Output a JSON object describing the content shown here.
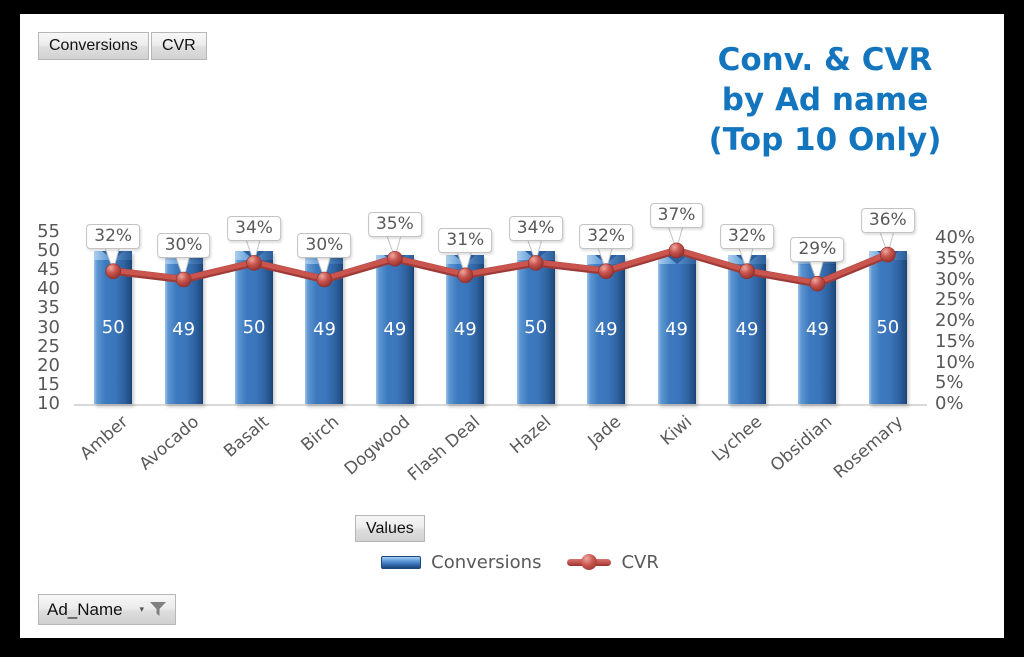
{
  "frame": {
    "background": "#000000",
    "canvas_background": "#FFFFFF"
  },
  "field_buttons": {
    "conversions_label": "Conversions",
    "cvr_label": "CVR"
  },
  "title": {
    "lines": [
      "Conv. & CVR",
      "by Ad name",
      "(Top 10 Only)"
    ],
    "color": "#1375BE"
  },
  "chart_data": {
    "type": "combo",
    "categories": [
      "Amber",
      "Avocado",
      "Basalt",
      "Birch",
      "Dogwood",
      "Flash Deal",
      "Hazel",
      "Jade",
      "Kiwi",
      "Lychee",
      "Obsidian",
      "Rosemary"
    ],
    "series": [
      {
        "name": "Conversions",
        "type": "bar",
        "axis": "left",
        "color": "#3B76BC",
        "values": [
          50,
          49,
          50,
          49,
          49,
          49,
          50,
          49,
          49,
          49,
          49,
          50
        ],
        "labels": [
          "50",
          "49",
          "50",
          "49",
          "49",
          "49",
          "50",
          "49",
          "49",
          "49",
          "49",
          "50"
        ]
      },
      {
        "name": "CVR",
        "type": "line",
        "axis": "right",
        "color": "#C0504D",
        "values_percent": [
          32,
          30,
          34,
          30,
          35,
          31,
          34,
          32,
          37,
          32,
          29,
          36
        ],
        "labels": [
          "32%",
          "30%",
          "34%",
          "30%",
          "35%",
          "31%",
          "34%",
          "32%",
          "37%",
          "32%",
          "29%",
          "36%"
        ]
      }
    ],
    "left_axis": {
      "min": 10,
      "max": 55,
      "step": 5,
      "ticks": [
        55,
        50,
        45,
        40,
        35,
        30,
        25,
        20,
        15,
        10
      ]
    },
    "right_axis": {
      "min": 0,
      "max": 40,
      "step": 5,
      "ticks": [
        "40%",
        "35%",
        "30%",
        "25%",
        "20%",
        "15%",
        "10%",
        "5%",
        "0%"
      ]
    },
    "legend": {
      "position": "bottom",
      "items": [
        "Conversions",
        "CVR"
      ]
    },
    "grid": "off"
  },
  "axis_field_button": {
    "label": "Values"
  },
  "category_field_button": {
    "label": "Ad_Name"
  }
}
